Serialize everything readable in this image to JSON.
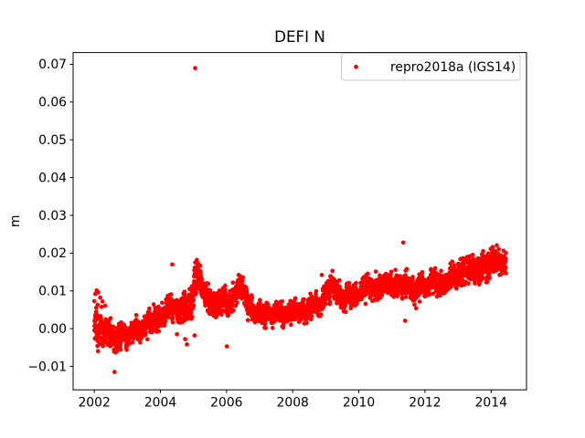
{
  "colors": {
    "series": "#ff0000",
    "legend_border": "#cccccc",
    "text": "#000000",
    "spine": "#000000",
    "background": "#ffffff"
  },
  "chart_data": {
    "type": "scatter",
    "title": "DEFI N",
    "xlabel": "",
    "ylabel": "m",
    "xlim": [
      2001.36,
      2015.07
    ],
    "ylim": [
      -0.0162,
      0.0731
    ],
    "xticks": [
      2002,
      2004,
      2006,
      2008,
      2010,
      2012,
      2014
    ],
    "xtick_labels": [
      "2002",
      "2004",
      "2006",
      "2008",
      "2010",
      "2012",
      "2014"
    ],
    "yticks": [
      -0.01,
      0.0,
      0.01,
      0.02,
      0.03,
      0.04,
      0.05,
      0.06,
      0.07
    ],
    "ytick_labels": [
      "−0.01",
      "0.00",
      "0.01",
      "0.02",
      "0.03",
      "0.04",
      "0.05",
      "0.06",
      "0.07"
    ],
    "grid": false,
    "legend": {
      "position": "upper right",
      "entries": [
        {
          "label": "repro2018a (IGS14)",
          "marker": "point",
          "color": "#ff0000"
        }
      ]
    },
    "series": [
      {
        "name": "repro2018a (IGS14)",
        "color": "#ff0000",
        "marker": "point",
        "marker_radius_px": 2.35,
        "units": "m",
        "x_start": 2002.0,
        "x_end": 2014.45,
        "cadence_years": 0.0035,
        "trend": [
          [
            2002.0,
            0.002
          ],
          [
            2002.15,
            0.0
          ],
          [
            2002.35,
            -0.0013
          ],
          [
            2002.6,
            -0.0023
          ],
          [
            2002.85,
            -0.0025
          ],
          [
            2003.05,
            -0.001
          ],
          [
            2003.3,
            0.0002
          ],
          [
            2003.6,
            0.0013
          ],
          [
            2003.9,
            0.0028
          ],
          [
            2004.2,
            0.0042
          ],
          [
            2004.5,
            0.0048
          ],
          [
            2004.8,
            0.0052
          ],
          [
            2004.95,
            0.0068
          ],
          [
            2005.05,
            0.0125
          ],
          [
            2005.18,
            0.0135
          ],
          [
            2005.3,
            0.0092
          ],
          [
            2005.5,
            0.0072
          ],
          [
            2005.8,
            0.0062
          ],
          [
            2006.05,
            0.0068
          ],
          [
            2006.25,
            0.0098
          ],
          [
            2006.45,
            0.011
          ],
          [
            2006.65,
            0.0065
          ],
          [
            2006.9,
            0.0042
          ],
          [
            2007.2,
            0.0035
          ],
          [
            2007.6,
            0.0038
          ],
          [
            2008.0,
            0.004
          ],
          [
            2008.4,
            0.005
          ],
          [
            2008.75,
            0.0058
          ],
          [
            2009.0,
            0.008
          ],
          [
            2009.2,
            0.0105
          ],
          [
            2009.45,
            0.0082
          ],
          [
            2009.7,
            0.0082
          ],
          [
            2010.0,
            0.0095
          ],
          [
            2010.3,
            0.011
          ],
          [
            2010.6,
            0.0112
          ],
          [
            2010.9,
            0.0108
          ],
          [
            2011.1,
            0.0122
          ],
          [
            2011.35,
            0.0115
          ],
          [
            2011.6,
            0.0102
          ],
          [
            2011.85,
            0.0108
          ],
          [
            2012.1,
            0.0118
          ],
          [
            2012.4,
            0.0125
          ],
          [
            2012.7,
            0.0135
          ],
          [
            2013.0,
            0.0143
          ],
          [
            2013.3,
            0.015
          ],
          [
            2013.6,
            0.0158
          ],
          [
            2013.9,
            0.0168
          ],
          [
            2014.2,
            0.0175
          ],
          [
            2014.45,
            0.018
          ]
        ],
        "noise_sigma": [
          [
            2002.0,
            0.0026
          ],
          [
            2002.5,
            0.0021
          ],
          [
            2003.0,
            0.0017
          ],
          [
            2004.0,
            0.0016
          ],
          [
            2004.9,
            0.0021
          ],
          [
            2005.2,
            0.0026
          ],
          [
            2005.5,
            0.0018
          ],
          [
            2006.4,
            0.0019
          ],
          [
            2007.0,
            0.0014
          ],
          [
            2008.5,
            0.0015
          ],
          [
            2009.2,
            0.0019
          ],
          [
            2010.0,
            0.0016
          ],
          [
            2011.0,
            0.0017
          ],
          [
            2012.0,
            0.0015
          ],
          [
            2013.0,
            0.0015
          ],
          [
            2014.0,
            0.0017
          ],
          [
            2014.45,
            0.0019
          ]
        ],
        "outliers": [
          [
            2002.03,
            0.0092
          ],
          [
            2002.07,
            0.0101
          ],
          [
            2002.12,
            0.0096
          ],
          [
            2002.18,
            0.0082
          ],
          [
            2002.25,
            0.0072
          ],
          [
            2002.1,
            0.0063
          ],
          [
            2002.33,
            0.0061
          ],
          [
            2002.61,
            -0.0115
          ],
          [
            2004.36,
            0.017
          ],
          [
            2004.5,
            -0.0015
          ],
          [
            2004.75,
            -0.0028
          ],
          [
            2004.8,
            -0.0042
          ],
          [
            2005.03,
            -0.0018
          ],
          [
            2005.05,
            0.069
          ],
          [
            2006.01,
            -0.0047
          ],
          [
            2008.88,
            0.0142
          ],
          [
            2011.34,
            0.0228
          ],
          [
            2011.45,
            0.0158
          ],
          [
            2011.4,
            0.0021
          ],
          [
            2011.73,
            0.0054
          ]
        ]
      }
    ]
  }
}
